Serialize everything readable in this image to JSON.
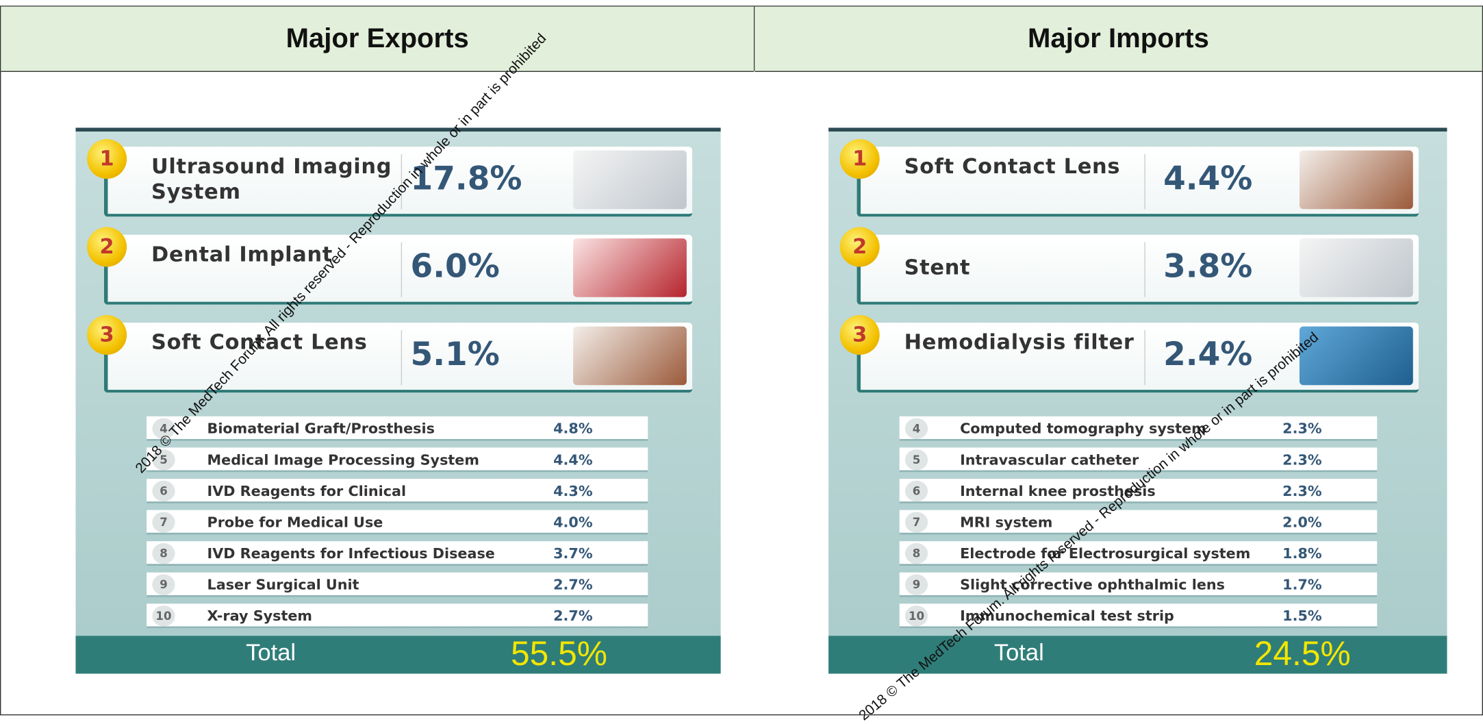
{
  "header": {
    "left": "Major Exports",
    "right": "Major Imports"
  },
  "watermark": "2018 © The MedTech Forum. All rights reserved - Reproduction in whole or in part is prohibited",
  "panels": [
    {
      "top": [
        {
          "rank": "1",
          "name": "Ultrasound Imaging System",
          "share": "17.8%"
        },
        {
          "rank": "2",
          "name": "Dental Implant",
          "share": "6.0%"
        },
        {
          "rank": "3",
          "name": "Soft Contact Lens",
          "share": "5.1%"
        }
      ],
      "list": [
        {
          "rank": "4",
          "name": "Biomaterial Graft/Prosthesis",
          "share": "4.8%"
        },
        {
          "rank": "5",
          "name": "Medical Image Processing System",
          "share": "4.4%"
        },
        {
          "rank": "6",
          "name": "IVD Reagents for Clinical",
          "share": "4.3%"
        },
        {
          "rank": "7",
          "name": "Probe for Medical Use",
          "share": "4.0%"
        },
        {
          "rank": "8",
          "name": "IVD Reagents for Infectious Disease",
          "share": "3.7%"
        },
        {
          "rank": "9",
          "name": "Laser Surgical Unit",
          "share": "2.7%"
        },
        {
          "rank": "10",
          "name": "X-ray System",
          "share": "2.7%"
        }
      ],
      "total_label": "Total",
      "total": "55.5%"
    },
    {
      "top": [
        {
          "rank": "1",
          "name": "Soft Contact Lens",
          "share": "4.4%"
        },
        {
          "rank": "2",
          "name": "Stent",
          "share": "3.8%"
        },
        {
          "rank": "3",
          "name": "Hemodialysis filter",
          "share": "2.4%"
        }
      ],
      "list": [
        {
          "rank": "4",
          "name": "Computed tomography system",
          "share": "2.3%"
        },
        {
          "rank": "5",
          "name": "Intravascular catheter",
          "share": "2.3%"
        },
        {
          "rank": "6",
          "name": "Internal knee prosthesis",
          "share": "2.3%"
        },
        {
          "rank": "7",
          "name": "MRI system",
          "share": "2.0%"
        },
        {
          "rank": "8",
          "name": "Electrode for Electrosurgical system",
          "share": "1.8%"
        },
        {
          "rank": "9",
          "name": "Slight corrective ophthalmic lens",
          "share": "1.7%"
        },
        {
          "rank": "10",
          "name": "Immunochemical test strip",
          "share": "1.5%"
        }
      ],
      "total_label": "Total",
      "total": "24.5%"
    }
  ]
}
